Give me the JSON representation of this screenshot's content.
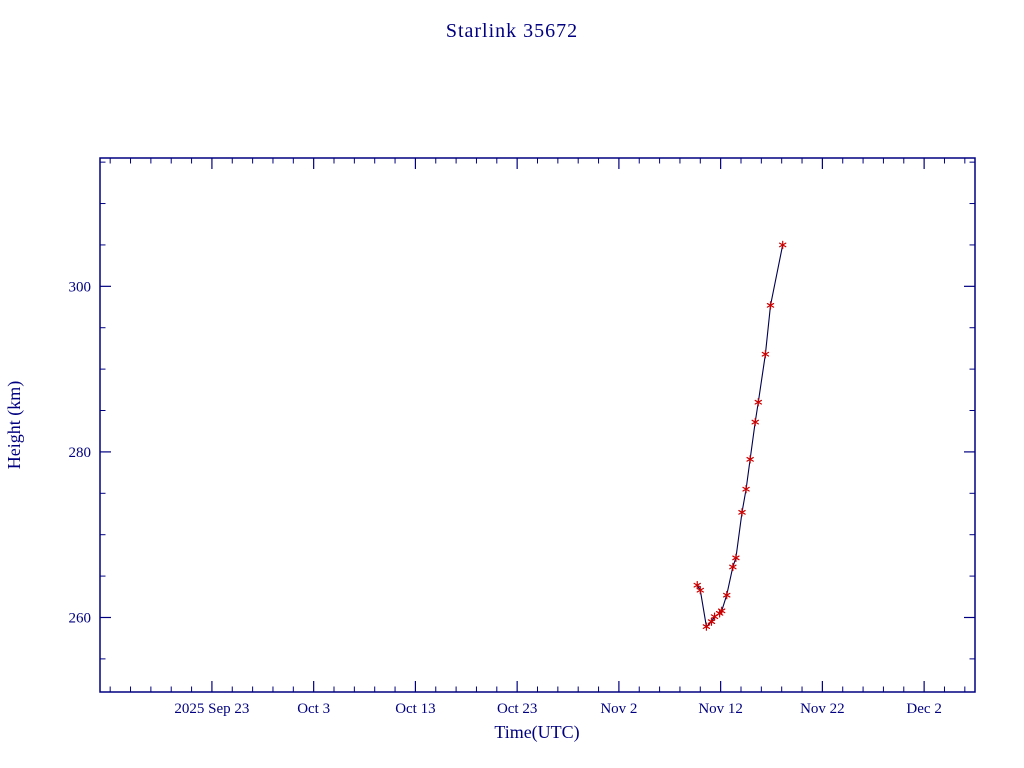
{
  "chart_data": {
    "type": "line",
    "title": "Starlink 35672",
    "xlabel": "Time(UTC)",
    "ylabel": "Height (km)",
    "x_unit": "days since 2025 Sep 23 (UTC)",
    "xlim": [
      -11,
      75
    ],
    "ylim": [
      251,
      315.5
    ],
    "grid": false,
    "legend": "none",
    "x_ticks": [
      {
        "value": 0,
        "label": "2025 Sep 23"
      },
      {
        "value": 10,
        "label": "Oct 3"
      },
      {
        "value": 20,
        "label": "Oct 13"
      },
      {
        "value": 30,
        "label": "Oct 23"
      },
      {
        "value": 40,
        "label": "Nov 2"
      },
      {
        "value": 50,
        "label": "Nov 12"
      },
      {
        "value": 60,
        "label": "Nov 22"
      },
      {
        "value": 70,
        "label": "Dec 2"
      }
    ],
    "x_minor_step": 2,
    "y_ticks": [
      {
        "value": 260,
        "label": "260"
      },
      {
        "value": 280,
        "label": "280"
      },
      {
        "value": 300,
        "label": "300"
      }
    ],
    "y_minor_step": 5,
    "series": [
      {
        "name": "height-km",
        "x": [
          47.7,
          48.0,
          48.6,
          49.1,
          49.4,
          49.9,
          50.1,
          50.6,
          51.2,
          51.5,
          52.1,
          52.5,
          52.9,
          53.4,
          53.7,
          54.4,
          54.9,
          56.1
        ],
        "y": [
          263.9,
          263.3,
          258.9,
          259.5,
          260.1,
          260.5,
          260.8,
          262.7,
          266.1,
          267.2,
          272.7,
          275.5,
          279.1,
          283.6,
          286.0,
          291.8,
          297.7,
          305.0
        ],
        "marker": "asterisk",
        "marker_color": "#cc0000",
        "line_color": "#00004f"
      }
    ],
    "colors": {
      "axis": "#000080",
      "text": "#000080",
      "background": "#ffffff"
    }
  }
}
